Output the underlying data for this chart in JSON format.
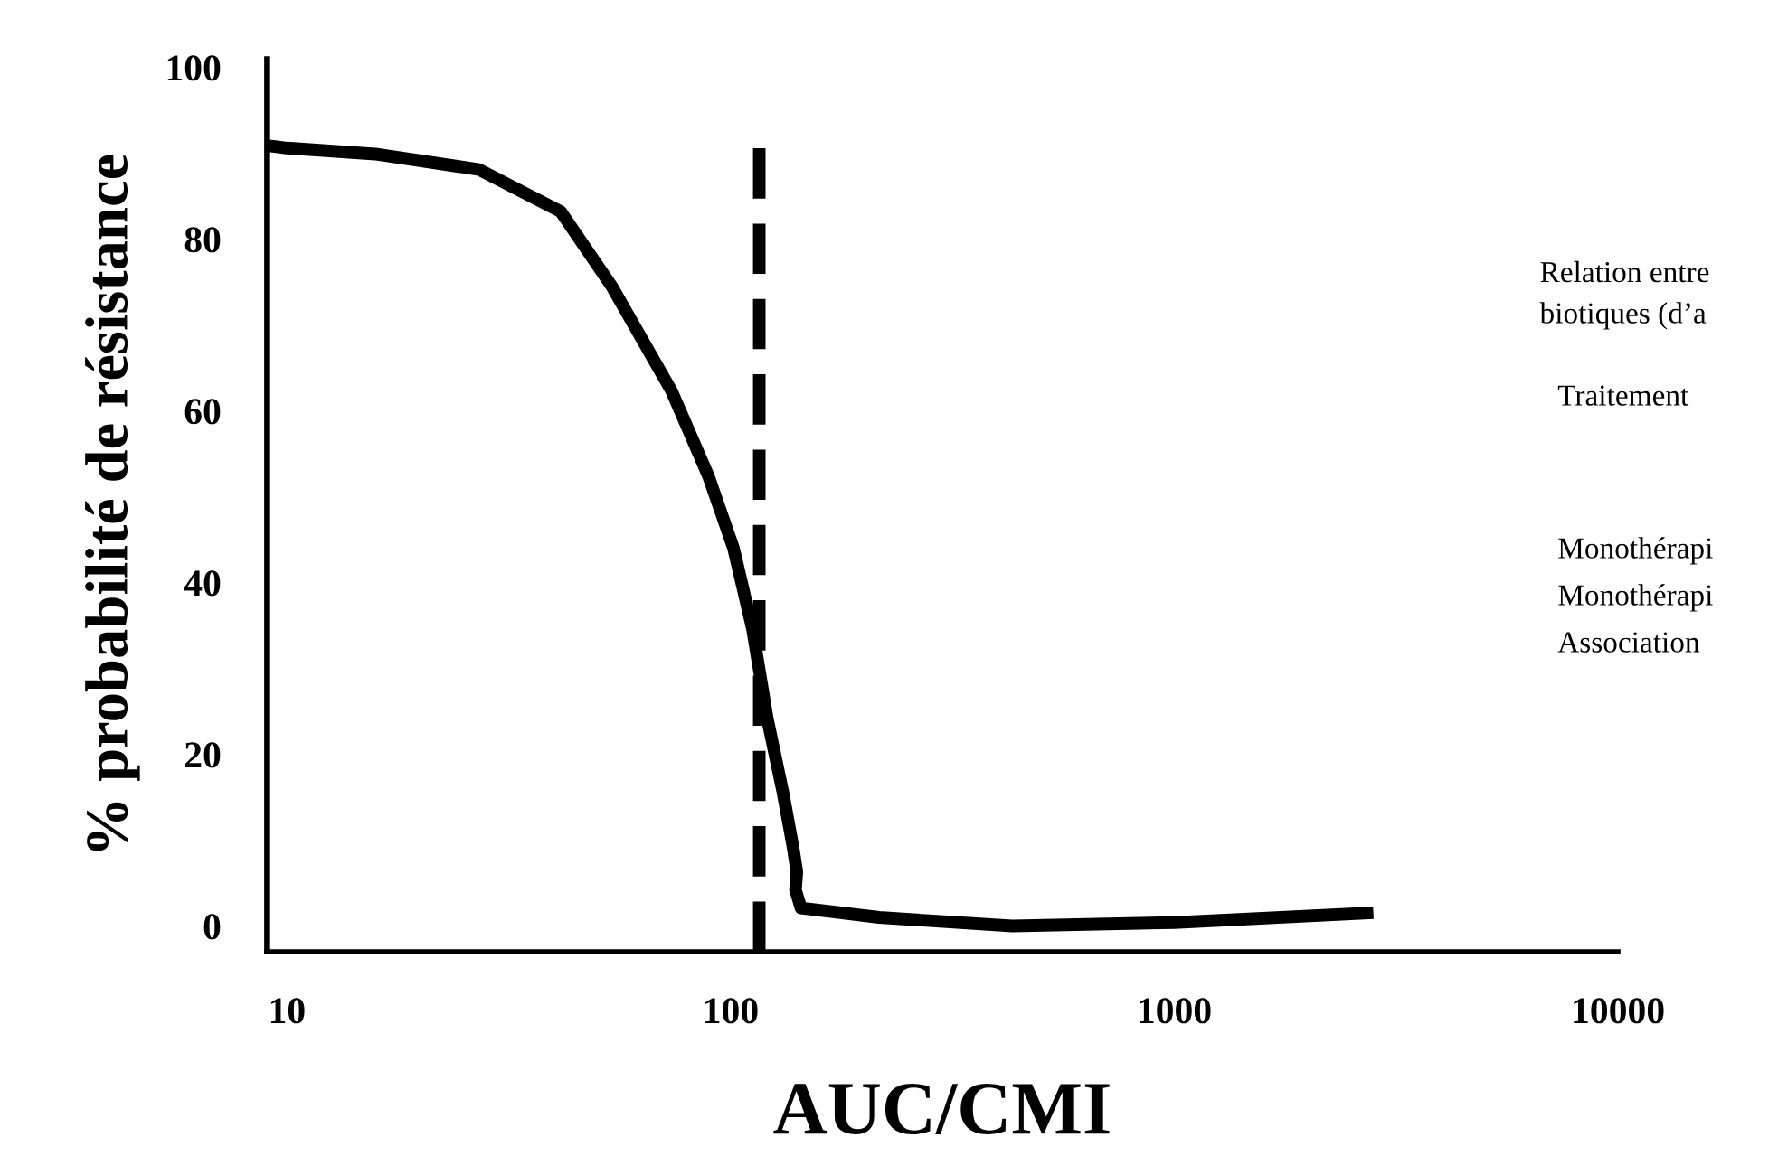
{
  "chart_data": {
    "type": "line",
    "xlabel": "AUC/CMI",
    "ylabel": "% probabilité de résistance",
    "x": [
      9.3,
      10,
      15.8,
      27.1,
      41.4,
      54.1,
      73.6,
      89.1,
      101.5,
      112,
      121,
      131,
      138,
      141,
      140,
      144,
      216,
      431,
      1000,
      2720
    ],
    "series": [
      {
        "color": "#000000",
        "values": [
          90.8,
          90.6,
          89.9,
          88.1,
          83.2,
          74.4,
          62.3,
          52.4,
          44.0,
          34.6,
          24.1,
          15.7,
          9.4,
          6.3,
          4.2,
          2.1,
          1,
          0,
          0.4,
          1.5
        ]
      }
    ],
    "log": "x",
    "xlim": [
      9,
      10000
    ],
    "xticks": [
      10,
      100,
      1000,
      10000
    ],
    "ylim": [
      -3,
      101
    ],
    "yticks": [
      0,
      20,
      40,
      60,
      80,
      100
    ],
    "grid": false,
    "legend": false,
    "marker": "none",
    "line_style": "solid",
    "ref_lines": [
      {
        "axis": "x",
        "value": 116,
        "color": "#000000",
        "line_style": "dashed"
      }
    ],
    "annotations": [
      "Relation entre",
      "biotiques (d’a",
      "Traitement",
      "Monothérapi",
      "Monothérapi",
      "Association"
    ]
  }
}
